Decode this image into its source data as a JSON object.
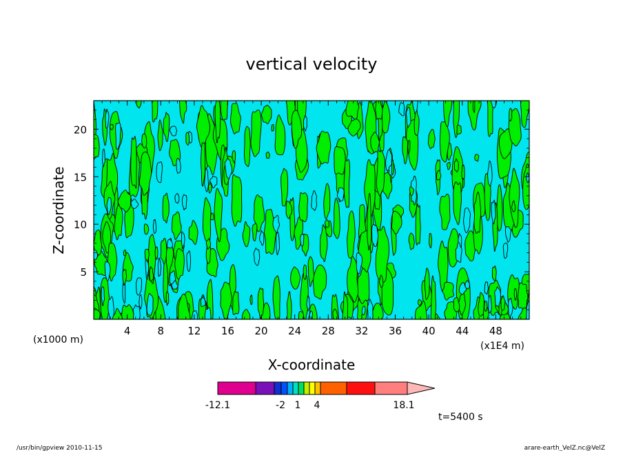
{
  "chart_data": {
    "type": "heatmap",
    "title": "vertical velocity",
    "xlabel": "X-coordinate",
    "ylabel": "Z-coordinate",
    "x_unit_left": "(x1000 m)",
    "x_unit_right": "(x1E4 m)",
    "xlim": [
      0,
      52
    ],
    "ylim": [
      0,
      23
    ],
    "x_ticks": [
      "4",
      "8",
      "12",
      "16",
      "20",
      "24",
      "28",
      "32",
      "36",
      "40",
      "44",
      "48"
    ],
    "y_ticks": [
      "5",
      "10",
      "15",
      "20"
    ],
    "field_colors": {
      "negative": "#00e5ee",
      "positive": "#00ee00",
      "contour": "#000000"
    },
    "colorbar": {
      "colors": [
        "#e00090",
        "#7a10b8",
        "#1030d0",
        "#0050ff",
        "#00b0ff",
        "#00e0c0",
        "#00e060",
        "#c0f000",
        "#ffff00",
        "#ffc000",
        "#ff6000",
        "#ff1010",
        "#ff7f7f",
        "#ffb8b8"
      ],
      "labels": [
        "-12.1",
        "-2",
        "1",
        "4",
        "18.1"
      ]
    },
    "time_label": "t=5400 s"
  },
  "footer": {
    "left": "/usr/bin/gpview   2010-11-15",
    "right": "arare-earth_VelZ.nc@VelZ"
  }
}
